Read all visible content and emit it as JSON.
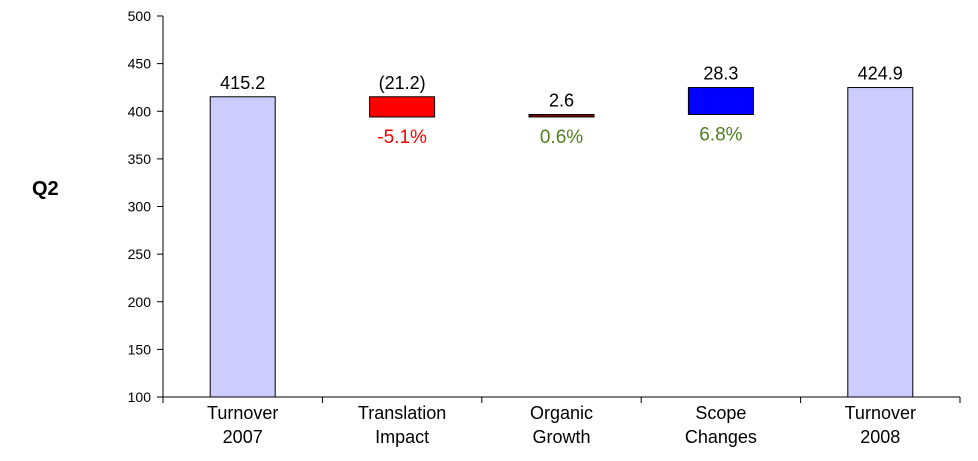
{
  "side_label": "Q2",
  "chart_data": {
    "type": "waterfall",
    "categories": [
      "Turnover\n2007",
      "Translation\nImpact",
      "Organic\nGrowth",
      "Scope\nChanges",
      "Turnover\n2008"
    ],
    "bars": [
      {
        "kind": "total",
        "start": 100,
        "end": 415.2,
        "value_label": "415.2",
        "color": "#ccccff"
      },
      {
        "kind": "delta",
        "start": 415.2,
        "end": 394.0,
        "value_label": "(21.2)",
        "pct_label": "-5.1%",
        "color": "#ff0000",
        "pct_color": "#ff0000"
      },
      {
        "kind": "delta",
        "start": 394.0,
        "end": 396.6,
        "value_label": "2.6",
        "pct_label": "0.6%",
        "color": "#800000",
        "pct_color": "#4f7f1f"
      },
      {
        "kind": "delta",
        "start": 396.6,
        "end": 424.9,
        "value_label": "28.3",
        "pct_label": "6.8%",
        "color": "#0000ff",
        "pct_color": "#4f7f1f"
      },
      {
        "kind": "total",
        "start": 100,
        "end": 424.9,
        "value_label": "424.9",
        "color": "#ccccff"
      }
    ],
    "ylim": [
      100,
      500
    ],
    "yticks": [
      100,
      150,
      200,
      250,
      300,
      350,
      400,
      450,
      500
    ],
    "grid": false,
    "legend": "none"
  }
}
